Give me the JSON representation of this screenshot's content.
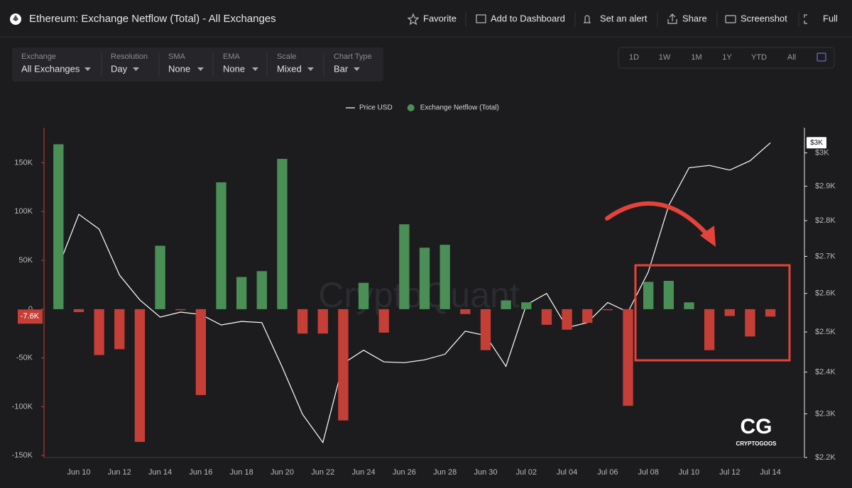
{
  "header": {
    "title": "Ethereum: Exchange Netflow (Total) - All Exchanges",
    "actions": [
      "Favorite",
      "Add to Dashboard",
      "Set an alert",
      "Share",
      "Screenshot",
      "Full"
    ]
  },
  "controls": [
    {
      "label": "Exchange",
      "value": "All Exchanges"
    },
    {
      "label": "Resolution",
      "value": "Day"
    },
    {
      "label": "SMA",
      "value": "None"
    },
    {
      "label": "EMA",
      "value": "None"
    },
    {
      "label": "Scale",
      "value": "Mixed"
    },
    {
      "label": "Chart Type",
      "value": "Bar"
    }
  ],
  "ranges": [
    "1D",
    "1W",
    "1M",
    "1Y",
    "YTD",
    "All"
  ],
  "chart_data": {
    "type": "bar",
    "watermark": "CryptoQuant",
    "logo": "CRYPTOGOOS",
    "logo_mark": "CG",
    "categories": [
      null,
      "Jun 10",
      null,
      "Jun 12",
      null,
      "Jun 14",
      null,
      "Jun 16",
      null,
      "Jun 18",
      null,
      "Jun 20",
      null,
      "Jun 22",
      null,
      "Jun 24",
      null,
      "Jun 26",
      null,
      "Jun 28",
      null,
      "Jun 30",
      null,
      "Jul 02",
      null,
      "Jul 04",
      null,
      "Jul 06",
      null,
      "Jul 08",
      null,
      "Jul 10",
      null,
      "Jul 12",
      null,
      "Jul 14"
    ],
    "series": [
      {
        "name": "Price USD",
        "type": "line",
        "axis": "y2",
        "color": "#ffffff",
        "last_value_label": "$3K",
        "values": [
          2672,
          2818,
          2776,
          2649,
          2583,
          2538,
          2551,
          2545,
          2518,
          2527,
          2524,
          2412,
          2299,
          2234,
          2421,
          2454,
          2425,
          2423,
          2430,
          2444,
          2502,
          2491,
          2414,
          2570,
          2600,
          2511,
          2524,
          2576,
          2551,
          2658,
          2843,
          2955,
          2962,
          2948,
          2976,
          3031
        ]
      },
      {
        "name": "Exchange Netflow (Total)",
        "type": "bar",
        "color": "#4a8f55",
        "negative_color": "#c63f37",
        "last_value_label": "-7.6K",
        "values": [
          169000,
          -3000,
          -47000,
          -41000,
          -136000,
          65000,
          -1000,
          -88000,
          130000,
          33000,
          39000,
          154000,
          -25000,
          -25000,
          -114000,
          27000,
          -24000,
          87000,
          63000,
          66000,
          -5000,
          -42000,
          9000,
          7000,
          -16000,
          -21000,
          -14000,
          -1000,
          -99000,
          28000,
          29000,
          7000,
          -42000,
          -7000,
          -28000,
          -7600
        ]
      }
    ],
    "ylim": [
      -152000,
      186000
    ],
    "yticks": [
      {
        "value": -150000,
        "label": "-150K"
      },
      {
        "value": -100000,
        "label": "-100K"
      },
      {
        "value": -50000,
        "label": "-50K"
      },
      0,
      {
        "value": 50000,
        "label": "50K"
      },
      {
        "value": 100000,
        "label": "100K"
      },
      {
        "value": 150000,
        "label": "150K"
      }
    ],
    "y2lim": [
      2200,
      3078
    ],
    "y2log": true,
    "y2ticks": [
      {
        "value": 2200,
        "label": "$2.2K"
      },
      {
        "value": 2300,
        "label": "$2.3K"
      },
      {
        "value": 2400,
        "label": "$2.4K"
      },
      {
        "value": 2500,
        "label": "$2.5K"
      },
      {
        "value": 2600,
        "label": "$2.6K"
      },
      {
        "value": 2700,
        "label": "$2.7K"
      },
      {
        "value": 2800,
        "label": "$2.8K"
      },
      {
        "value": 2900,
        "label": "$2.9K"
      },
      {
        "value": 3000,
        "label": "$3K"
      }
    ],
    "grid": false
  }
}
